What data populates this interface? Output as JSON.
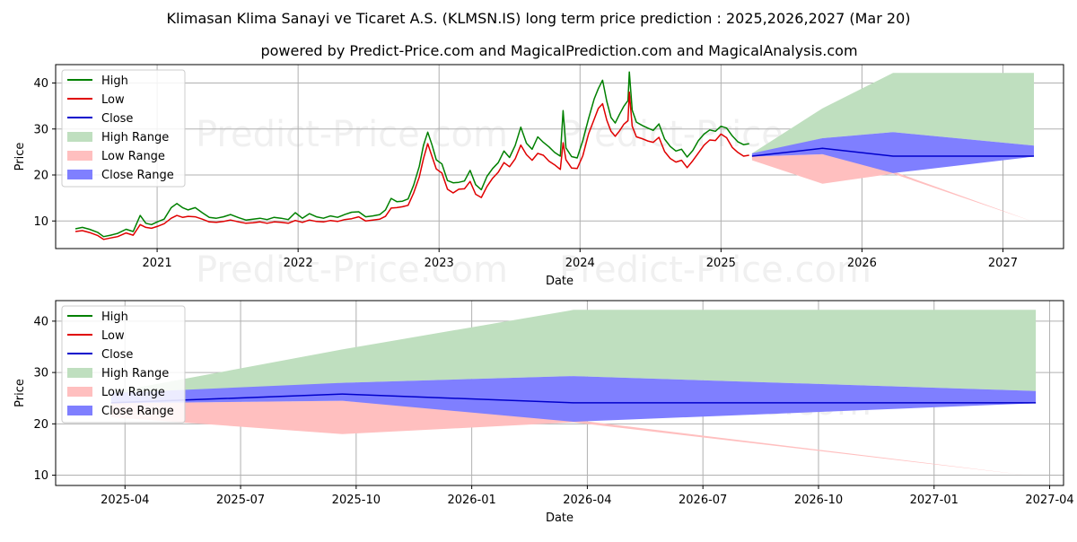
{
  "title": "Klimasan Klima Sanayi ve Ticaret A.S. (KLMSN.IS) long term price prediction : 2025,2026,2027 (Mar 20)",
  "subtitle": "powered by Predict-Price.com and MagicalPrediction.com and MagicalAnalysis.com",
  "watermark": "Predict-Price.com",
  "colors": {
    "high": "#008000",
    "low": "#e00000",
    "close": "#0000cc",
    "high_range": "#bfdfbf",
    "low_range": "#ffbfbf",
    "close_range": "#7f7fff",
    "grid": "#b0b0b0"
  },
  "chart_data": [
    {
      "type": "line",
      "id": "top",
      "xlabel": "Date",
      "ylabel": "Price",
      "xlim": [
        2020.28,
        2027.43
      ],
      "ylim": [
        4,
        44
      ],
      "grid": true,
      "legend_position": "top-left",
      "x_ticks": [
        2021,
        2022,
        2023,
        2024,
        2025,
        2026,
        2027
      ],
      "x_tick_labels": [
        "2021",
        "2022",
        "2023",
        "2024",
        "2025",
        "2026",
        "2027"
      ],
      "y_ticks": [
        10,
        20,
        30,
        40
      ],
      "y_tick_labels": [
        "10",
        "20",
        "30",
        "40"
      ],
      "legend": [
        "High",
        "Low",
        "Close",
        "High Range",
        "Low Range",
        "Close Range"
      ],
      "history": {
        "x": [
          2020.42,
          2020.47,
          2020.52,
          2020.58,
          2020.62,
          2020.67,
          2020.72,
          2020.78,
          2020.83,
          2020.88,
          2020.92,
          2020.96,
          2021.0,
          2021.05,
          2021.1,
          2021.14,
          2021.18,
          2021.22,
          2021.27,
          2021.32,
          2021.37,
          2021.42,
          2021.47,
          2021.52,
          2021.58,
          2021.63,
          2021.68,
          2021.73,
          2021.78,
          2021.83,
          2021.88,
          2021.93,
          2021.98,
          2022.03,
          2022.08,
          2022.13,
          2022.18,
          2022.23,
          2022.28,
          2022.33,
          2022.38,
          2022.43,
          2022.48,
          2022.53,
          2022.58,
          2022.62,
          2022.66,
          2022.7,
          2022.74,
          2022.78,
          2022.82,
          2022.86,
          2022.89,
          2022.92,
          2022.95,
          2022.98,
          2023.02,
          2023.06,
          2023.1,
          2023.14,
          2023.18,
          2023.22,
          2023.26,
          2023.3,
          2023.34,
          2023.38,
          2023.42,
          2023.46,
          2023.5,
          2023.54,
          2023.58,
          2023.62,
          2023.66,
          2023.7,
          2023.74,
          2023.78,
          2023.82,
          2023.86,
          2023.88,
          2023.9,
          2023.94,
          2023.98,
          2024.02,
          2024.06,
          2024.1,
          2024.13,
          2024.16,
          2024.19,
          2024.22,
          2024.25,
          2024.28,
          2024.31,
          2024.34,
          2024.35,
          2024.37,
          2024.4,
          2024.44,
          2024.48,
          2024.52,
          2024.56,
          2024.6,
          2024.64,
          2024.68,
          2024.72,
          2024.76,
          2024.8,
          2024.84,
          2024.88,
          2024.92,
          2024.96,
          2025.0,
          2025.04,
          2025.08,
          2025.12,
          2025.16,
          2025.2
        ],
        "high": [
          8.3,
          8.6,
          8.2,
          7.5,
          6.6,
          6.9,
          7.3,
          8.2,
          7.7,
          11.2,
          9.5,
          9.2,
          9.8,
          10.4,
          12.9,
          13.8,
          12.9,
          12.4,
          12.9,
          11.8,
          10.8,
          10.6,
          10.9,
          11.4,
          10.7,
          10.2,
          10.4,
          10.6,
          10.3,
          10.8,
          10.6,
          10.3,
          11.8,
          10.6,
          11.6,
          10.9,
          10.6,
          11.1,
          10.8,
          11.4,
          11.9,
          12.0,
          10.9,
          11.1,
          11.4,
          12.4,
          14.9,
          14.2,
          14.3,
          14.8,
          17.8,
          21.9,
          26.5,
          29.3,
          26.5,
          23.3,
          22.4,
          18.8,
          18.3,
          18.4,
          18.7,
          21.0,
          17.9,
          16.8,
          19.7,
          21.4,
          22.7,
          25.2,
          23.8,
          26.4,
          30.4,
          26.9,
          25.6,
          28.3,
          27.1,
          26.1,
          24.9,
          24.1,
          34.0,
          25.9,
          24.0,
          23.7,
          27.5,
          32.2,
          36.5,
          38.8,
          40.6,
          36.0,
          32.5,
          31.3,
          33.2,
          34.9,
          36.2,
          42.4,
          34.1,
          31.5,
          30.8,
          30.2,
          29.7,
          31.1,
          27.8,
          26.2,
          25.2,
          25.6,
          23.9,
          25.3,
          27.5,
          28.9,
          29.8,
          29.5,
          30.6,
          30.2,
          28.5,
          27.2,
          26.6,
          26.8
        ],
        "low": [
          7.7,
          7.9,
          7.5,
          6.8,
          6.0,
          6.3,
          6.6,
          7.4,
          6.9,
          9.2,
          8.6,
          8.4,
          8.8,
          9.4,
          10.6,
          11.2,
          10.8,
          11.0,
          10.9,
          10.4,
          9.8,
          9.7,
          9.9,
          10.2,
          9.8,
          9.5,
          9.6,
          9.8,
          9.5,
          9.8,
          9.7,
          9.5,
          10.1,
          9.7,
          10.2,
          9.9,
          9.8,
          10.1,
          9.9,
          10.3,
          10.5,
          10.9,
          10.0,
          10.2,
          10.4,
          11.0,
          12.8,
          12.9,
          13.1,
          13.4,
          16.1,
          19.6,
          23.6,
          26.8,
          24.0,
          21.3,
          20.4,
          16.9,
          16.1,
          16.9,
          17.0,
          18.6,
          15.8,
          15.1,
          17.5,
          19.3,
          20.6,
          22.7,
          21.8,
          23.5,
          26.5,
          24.4,
          23.2,
          24.7,
          24.3,
          23.0,
          22.2,
          21.2,
          27.0,
          23.3,
          21.5,
          21.4,
          24.2,
          28.9,
          32.1,
          34.5,
          35.5,
          31.9,
          29.5,
          28.4,
          29.6,
          31.0,
          31.8,
          38.0,
          30.6,
          28.3,
          27.9,
          27.4,
          27.1,
          28.2,
          25.1,
          23.6,
          22.8,
          23.2,
          21.6,
          23.1,
          24.8,
          26.5,
          27.6,
          27.5,
          28.9,
          28.1,
          26.0,
          24.9,
          24.1,
          24.3
        ]
      },
      "forecast": {
        "x": [
          2025.22,
          2025.72,
          2026.22,
          2027.22
        ],
        "close": [
          24.1,
          25.8,
          24.1,
          24.1
        ],
        "high_range_upper": [
          24.7,
          34.5,
          42.2,
          42.2
        ],
        "high_range_lower": [
          24.5,
          28.0,
          29.3,
          26.4
        ],
        "low_range_upper": [
          24.0,
          24.5,
          20.8,
          9.8
        ],
        "low_range_lower": [
          23.2,
          18.1,
          20.3,
          9.8
        ],
        "close_range_upper": [
          24.7,
          28.0,
          29.3,
          26.4
        ],
        "close_range_lower": [
          24.0,
          24.5,
          20.4,
          24.0
        ]
      }
    },
    {
      "type": "line",
      "id": "bottom",
      "xlabel": "Date",
      "ylabel": "Price",
      "xlim": [
        2025.1,
        2027.28
      ],
      "ylim": [
        8,
        44
      ],
      "grid": true,
      "legend_position": "top-left",
      "x_ticks": [
        2025.25,
        2025.5,
        2025.75,
        2026.0,
        2026.25,
        2026.5,
        2026.75,
        2027.0,
        2027.25
      ],
      "x_tick_labels": [
        "2025-04",
        "2025-07",
        "2025-10",
        "2026-01",
        "2026-04",
        "2026-07",
        "2026-10",
        "2027-01",
        "2027-04"
      ],
      "y_ticks": [
        10,
        20,
        30,
        40
      ],
      "y_tick_labels": [
        "10",
        "20",
        "30",
        "40"
      ],
      "legend": [
        "High",
        "Low",
        "Close",
        "High Range",
        "Low Range",
        "Close Range"
      ],
      "forecast": {
        "x": [
          2025.22,
          2025.72,
          2026.22,
          2027.22
        ],
        "close": [
          24.1,
          25.8,
          24.1,
          24.1
        ],
        "high_range_upper": [
          26.1,
          34.5,
          42.2,
          42.2
        ],
        "high_range_lower": [
          24.5,
          28.0,
          29.3,
          26.4
        ],
        "low_range_upper": [
          24.0,
          24.5,
          20.8,
          9.8
        ],
        "low_range_lower": [
          21.3,
          18.0,
          20.3,
          9.8
        ],
        "close_range_upper": [
          26.0,
          28.0,
          29.3,
          26.4
        ],
        "close_range_lower": [
          24.0,
          24.5,
          20.4,
          24.0
        ]
      }
    }
  ]
}
